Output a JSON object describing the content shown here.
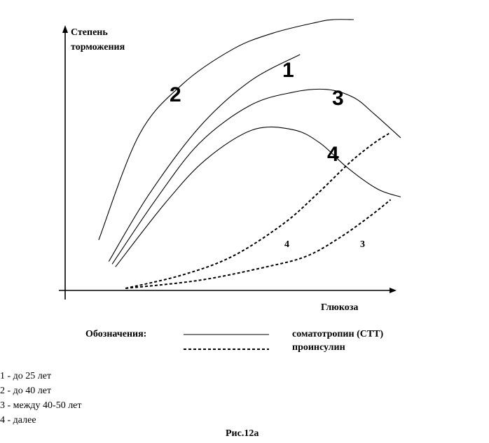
{
  "chart_data": {
    "type": "line",
    "title": "",
    "ylabel_lines": [
      "Степень",
      "торможения"
    ],
    "xlabel": "Глюкоза",
    "grid": false,
    "series": [
      {
        "name": "1",
        "style": "solid",
        "x": [
          0.13,
          0.25,
          0.4,
          0.55,
          0.7
        ],
        "y": [
          0.1,
          0.35,
          0.6,
          0.77,
          0.87
        ]
      },
      {
        "name": "2",
        "style": "solid",
        "x": [
          0.1,
          0.22,
          0.35,
          0.5,
          0.62,
          0.75,
          0.8,
          0.86
        ],
        "y": [
          0.18,
          0.57,
          0.76,
          0.89,
          0.95,
          0.99,
          1.0,
          1.0
        ]
      },
      {
        "name": "3",
        "style": "solid",
        "x": [
          0.14,
          0.27,
          0.4,
          0.55,
          0.68,
          0.78,
          0.86,
          0.92,
          1.0
        ],
        "y": [
          0.09,
          0.33,
          0.54,
          0.68,
          0.73,
          0.74,
          0.71,
          0.65,
          0.56
        ]
      },
      {
        "name": "4",
        "style": "solid",
        "x": [
          0.15,
          0.3,
          0.42,
          0.56,
          0.68,
          0.76,
          0.84,
          0.93,
          1.0
        ],
        "y": [
          0.08,
          0.32,
          0.48,
          0.59,
          0.59,
          0.54,
          0.45,
          0.37,
          0.34
        ]
      },
      {
        "name": "4",
        "style": "dashed",
        "x": [
          0.18,
          0.35,
          0.5,
          0.65,
          0.75,
          0.85,
          0.92,
          0.97
        ],
        "y": [
          0.0,
          0.05,
          0.12,
          0.24,
          0.35,
          0.47,
          0.54,
          0.58
        ]
      },
      {
        "name": "3",
        "style": "dashed",
        "x": [
          0.18,
          0.4,
          0.6,
          0.72,
          0.82,
          0.91,
          0.97
        ],
        "y": [
          0.0,
          0.03,
          0.08,
          0.12,
          0.19,
          0.27,
          0.33
        ]
      }
    ],
    "legend": {
      "title": "Обозначения:",
      "items": [
        {
          "style": "solid",
          "label": "соматотропин (СТТ)"
        },
        {
          "style": "dashed",
          "label": "проинсулин"
        }
      ]
    }
  },
  "notes": [
    "1 - до 25 лет",
    "2 - до 40 лет",
    "3 - между  40-50 лет",
    "4 - далее"
  ],
  "caption": "Рис.12а"
}
